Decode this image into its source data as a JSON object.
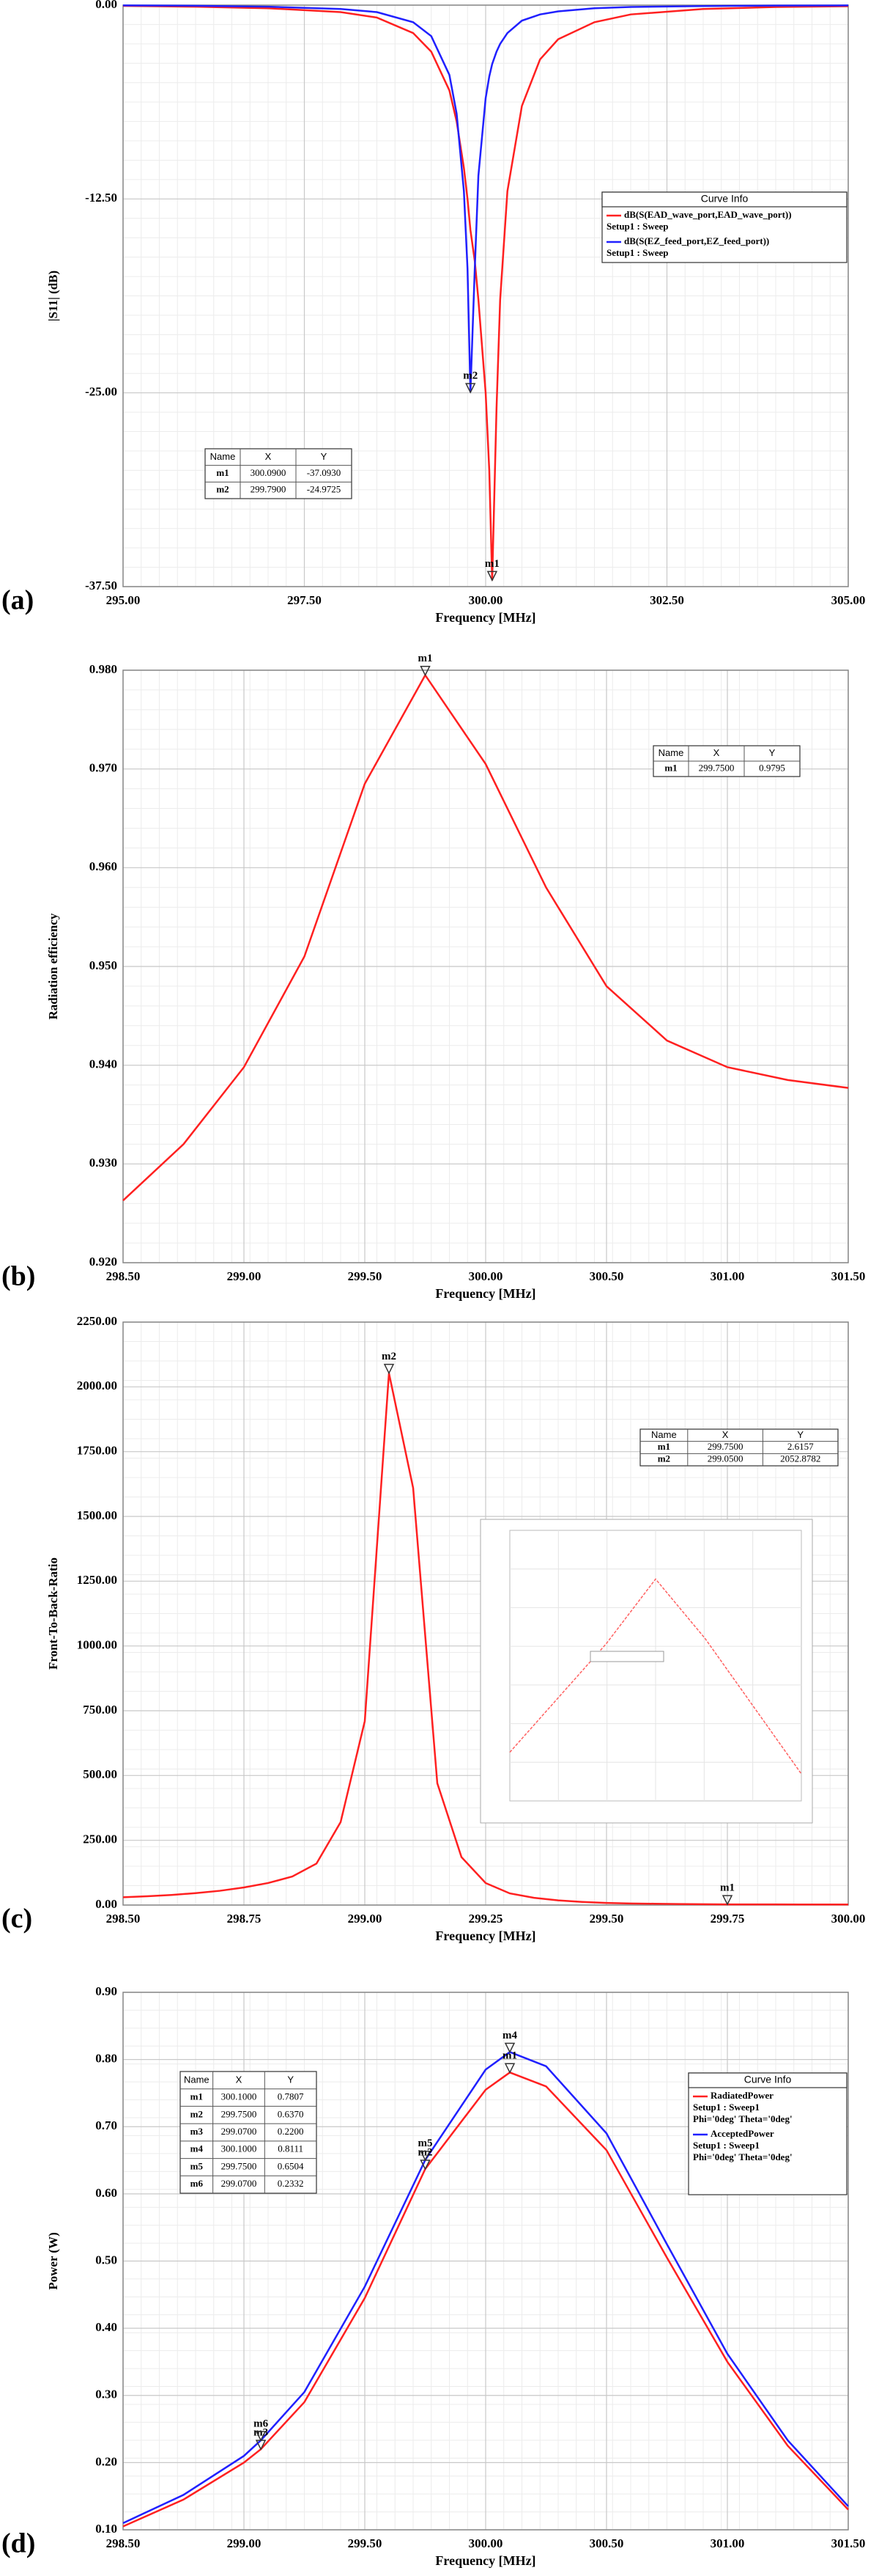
{
  "chart_data": [
    {
      "type": "line",
      "label": "(a)",
      "xlabel": "Frequency [MHz]",
      "ylabel": "|S11| (dB)",
      "xlim": [
        295,
        305
      ],
      "xticks": [
        {
          "value": 295,
          "label": "295.00"
        },
        {
          "value": 297.5,
          "label": "297.50"
        },
        {
          "value": 300,
          "label": "300.00"
        },
        {
          "value": 302.5,
          "label": "302.50"
        },
        {
          "value": 305,
          "label": "305.00"
        }
      ],
      "ylim": [
        -37.5,
        0
      ],
      "yticks": [
        {
          "value": -37.5,
          "label": "-37.50"
        },
        {
          "value": -25,
          "label": "-25.00"
        },
        {
          "value": -12.5,
          "label": "-12.50"
        },
        {
          "value": 0,
          "label": "0.00"
        }
      ],
      "grid": true,
      "x": [
        295,
        296,
        297,
        298,
        298.5,
        299,
        299.25,
        299.5,
        299.6,
        299.7,
        299.75,
        299.79,
        299.85,
        299.9,
        300,
        300.05,
        300.09,
        300.15,
        300.2,
        300.3,
        300.5,
        300.75,
        301,
        301.5,
        302,
        303,
        304,
        305
      ],
      "series": [
        {
          "name": "dB(S(EAD_wave_port,EAD_wave_port))",
          "setup": "Setup1 : Sweep",
          "color": "#ff2020",
          "values": [
            -0.05,
            -0.1,
            -0.2,
            -0.45,
            -0.8,
            -1.8,
            -3,
            -5.5,
            -7.5,
            -10.5,
            -12.5,
            -14.5,
            -16.5,
            -19,
            -25,
            -30,
            -37.093,
            -26,
            -19,
            -12,
            -6.5,
            -3.5,
            -2.2,
            -1.1,
            -0.6,
            -0.25,
            -0.12,
            -0.07
          ]
        },
        {
          "name": "dB(S(EZ_feed_port,EZ_feed_port))",
          "setup": "Setup1 : Sweep",
          "color": "#2020ff",
          "values": [
            -0.02,
            -0.04,
            -0.1,
            -0.25,
            -0.45,
            -1.1,
            -2,
            -4.5,
            -7,
            -12,
            -17,
            -24.9725,
            -17,
            -11,
            -6,
            -4.6,
            -3.8,
            -3,
            -2.5,
            -1.8,
            -1,
            -0.6,
            -0.4,
            -0.2,
            -0.12,
            -0.06,
            -0.03,
            -0.02
          ]
        }
      ],
      "legend": {
        "title": "Curve Info"
      },
      "markers": {
        "columns": [
          "Name",
          "X",
          "Y"
        ],
        "rows": [
          {
            "name": "m1",
            "x": {
              "value": 300.09,
              "label": "300.0900"
            },
            "y": {
              "value": -37.093,
              "label": "-37.0930"
            }
          },
          {
            "name": "m2",
            "x": {
              "value": 299.79,
              "label": "299.7900"
            },
            "y": {
              "value": -24.9725,
              "label": "-24.9725"
            }
          }
        ]
      }
    },
    {
      "type": "line",
      "label": "(b)",
      "xlabel": "Frequency [MHz]",
      "ylabel": "Radiation efficiency",
      "xlim": [
        298.5,
        301.5
      ],
      "xticks": [
        {
          "value": 298.5,
          "label": "298.50"
        },
        {
          "value": 299,
          "label": "299.00"
        },
        {
          "value": 299.5,
          "label": "299.50"
        },
        {
          "value": 300,
          "label": "300.00"
        },
        {
          "value": 300.5,
          "label": "300.50"
        },
        {
          "value": 301,
          "label": "301.00"
        },
        {
          "value": 301.5,
          "label": "301.50"
        }
      ],
      "ylim": [
        0.92,
        0.98
      ],
      "yticks": [
        {
          "value": 0.92,
          "label": "0.920"
        },
        {
          "value": 0.93,
          "label": "0.930"
        },
        {
          "value": 0.94,
          "label": "0.940"
        },
        {
          "value": 0.95,
          "label": "0.950"
        },
        {
          "value": 0.96,
          "label": "0.960"
        },
        {
          "value": 0.97,
          "label": "0.970"
        },
        {
          "value": 0.98,
          "label": "0.980"
        }
      ],
      "grid": true,
      "x": [
        298.5,
        298.75,
        299,
        299.25,
        299.5,
        299.75,
        300,
        300.25,
        300.5,
        300.75,
        301,
        301.25,
        301.5
      ],
      "series": [
        {
          "color": "#ff2020",
          "values": [
            0.9263,
            0.932,
            0.9398,
            0.951,
            0.9685,
            0.9795,
            0.9705,
            0.958,
            0.948,
            0.9425,
            0.9398,
            0.9385,
            0.9377
          ]
        }
      ],
      "markers": {
        "columns": [
          "Name",
          "X",
          "Y"
        ],
        "rows": [
          {
            "name": "m1",
            "x": {
              "value": 299.75,
              "label": "299.7500"
            },
            "y": {
              "value": 0.9795,
              "label": "0.9795"
            }
          }
        ]
      }
    },
    {
      "type": "line",
      "label": "(c)",
      "xlabel": "Frequency [MHz]",
      "ylabel": "Front-To-Back-Ratio",
      "xlim": [
        298.5,
        300
      ],
      "xticks": [
        {
          "value": 298.5,
          "label": "298.50"
        },
        {
          "value": 298.75,
          "label": "298.75"
        },
        {
          "value": 299,
          "label": "299.00"
        },
        {
          "value": 299.25,
          "label": "299.25"
        },
        {
          "value": 299.5,
          "label": "299.50"
        },
        {
          "value": 299.75,
          "label": "299.75"
        },
        {
          "value": 300,
          "label": "300.00"
        }
      ],
      "ylim": [
        0,
        2250
      ],
      "yticks": [
        {
          "value": 0,
          "label": "0.00"
        },
        {
          "value": 250,
          "label": "250.00"
        },
        {
          "value": 500,
          "label": "500.00"
        },
        {
          "value": 750,
          "label": "750.00"
        },
        {
          "value": 1000,
          "label": "1000.00"
        },
        {
          "value": 1250,
          "label": "1250.00"
        },
        {
          "value": 1500,
          "label": "1500.00"
        },
        {
          "value": 1750,
          "label": "1750.00"
        },
        {
          "value": 2000,
          "label": "2000.00"
        },
        {
          "value": 2250,
          "label": "2250.00"
        }
      ],
      "grid": true,
      "x": [
        298.5,
        298.55,
        298.6,
        298.65,
        298.7,
        298.75,
        298.8,
        298.85,
        298.9,
        298.95,
        299,
        299.05,
        299.1,
        299.15,
        299.2,
        299.25,
        299.3,
        299.35,
        299.4,
        299.45,
        299.5,
        299.55,
        299.6,
        299.65,
        299.7,
        299.75,
        299.8,
        299.85,
        299.9,
        299.95,
        300
      ],
      "series": [
        {
          "color": "#ff2020",
          "values": [
            30,
            34,
            39,
            46,
            55,
            68,
            85,
            110,
            160,
            320,
            710,
            2052.8782,
            1610,
            470,
            185,
            85,
            45,
            28,
            18,
            12,
            8,
            6,
            5,
            4,
            3.3,
            2.6157,
            2.4,
            2.3,
            2.2,
            2.1,
            2.05
          ]
        }
      ],
      "markers": {
        "columns": [
          "Name",
          "X",
          "Y"
        ],
        "rows": [
          {
            "name": "m1",
            "x": {
              "value": 299.75,
              "label": "299.7500"
            },
            "y": {
              "value": 2.6157,
              "label": "2.6157"
            }
          },
          {
            "name": "m2",
            "x": {
              "value": 299.05,
              "label": "299.0500"
            },
            "y": {
              "value": 2052.8782,
              "label": "2052.8782"
            }
          }
        ]
      }
    },
    {
      "type": "line",
      "label": "(d)",
      "xlabel": "Frequency [MHz]",
      "ylabel": "Power (W)",
      "xlim": [
        298.5,
        301.5
      ],
      "xticks": [
        {
          "value": 298.5,
          "label": "298.50"
        },
        {
          "value": 299,
          "label": "299.00"
        },
        {
          "value": 299.5,
          "label": "299.50"
        },
        {
          "value": 300,
          "label": "300.00"
        },
        {
          "value": 300.5,
          "label": "300.50"
        },
        {
          "value": 301,
          "label": "301.00"
        },
        {
          "value": 301.5,
          "label": "301.50"
        }
      ],
      "ylim": [
        0.1,
        0.9
      ],
      "yticks": [
        {
          "value": 0.1,
          "label": "0.10"
        },
        {
          "value": 0.2,
          "label": "0.20"
        },
        {
          "value": 0.3,
          "label": "0.30"
        },
        {
          "value": 0.4,
          "label": "0.40"
        },
        {
          "value": 0.5,
          "label": "0.50"
        },
        {
          "value": 0.6,
          "label": "0.60"
        },
        {
          "value": 0.7,
          "label": "0.70"
        },
        {
          "value": 0.8,
          "label": "0.80"
        },
        {
          "value": 0.9,
          "label": "0.90"
        }
      ],
      "grid": true,
      "x": [
        298.5,
        298.75,
        299,
        299.07,
        299.25,
        299.5,
        299.75,
        300,
        300.1,
        300.25,
        300.5,
        300.75,
        301,
        301.25,
        301.5
      ],
      "series": [
        {
          "name": "RadiatedPower",
          "setup": "Setup1 : Sweep1",
          "variation": "Phi='0deg' Theta='0deg'",
          "color": "#ff2020",
          "values": [
            0.105,
            0.145,
            0.2,
            0.22,
            0.29,
            0.445,
            0.637,
            0.755,
            0.7807,
            0.76,
            0.665,
            0.505,
            0.35,
            0.225,
            0.13
          ]
        },
        {
          "name": "AcceptedPower",
          "setup": "Setup1 : Sweep1",
          "variation": "Phi='0deg' Theta='0deg'",
          "color": "#2020ff",
          "values": [
            0.11,
            0.152,
            0.21,
            0.2332,
            0.305,
            0.462,
            0.6504,
            0.785,
            0.8111,
            0.79,
            0.69,
            0.525,
            0.362,
            0.233,
            0.135
          ]
        }
      ],
      "legend": {
        "title": "Curve Info"
      },
      "markers": {
        "columns": [
          "Name",
          "X",
          "Y"
        ],
        "rows": [
          {
            "name": "m1",
            "x": {
              "value": 300.1,
              "label": "300.1000"
            },
            "y": {
              "value": 0.7807,
              "label": "0.7807"
            }
          },
          {
            "name": "m2",
            "x": {
              "value": 299.75,
              "label": "299.7500"
            },
            "y": {
              "value": 0.637,
              "label": "0.6370"
            }
          },
          {
            "name": "m3",
            "x": {
              "value": 299.07,
              "label": "299.0700"
            },
            "y": {
              "value": 0.22,
              "label": "0.2200"
            }
          },
          {
            "name": "m4",
            "x": {
              "value": 300.1,
              "label": "300.1000"
            },
            "y": {
              "value": 0.8111,
              "label": "0.8111"
            }
          },
          {
            "name": "m5",
            "x": {
              "value": 299.75,
              "label": "299.7500"
            },
            "y": {
              "value": 0.6504,
              "label": "0.6504"
            }
          },
          {
            "name": "m6",
            "x": {
              "value": 299.07,
              "label": "299.0700"
            },
            "y": {
              "value": 0.2332,
              "label": "0.2332"
            }
          }
        ]
      }
    }
  ]
}
